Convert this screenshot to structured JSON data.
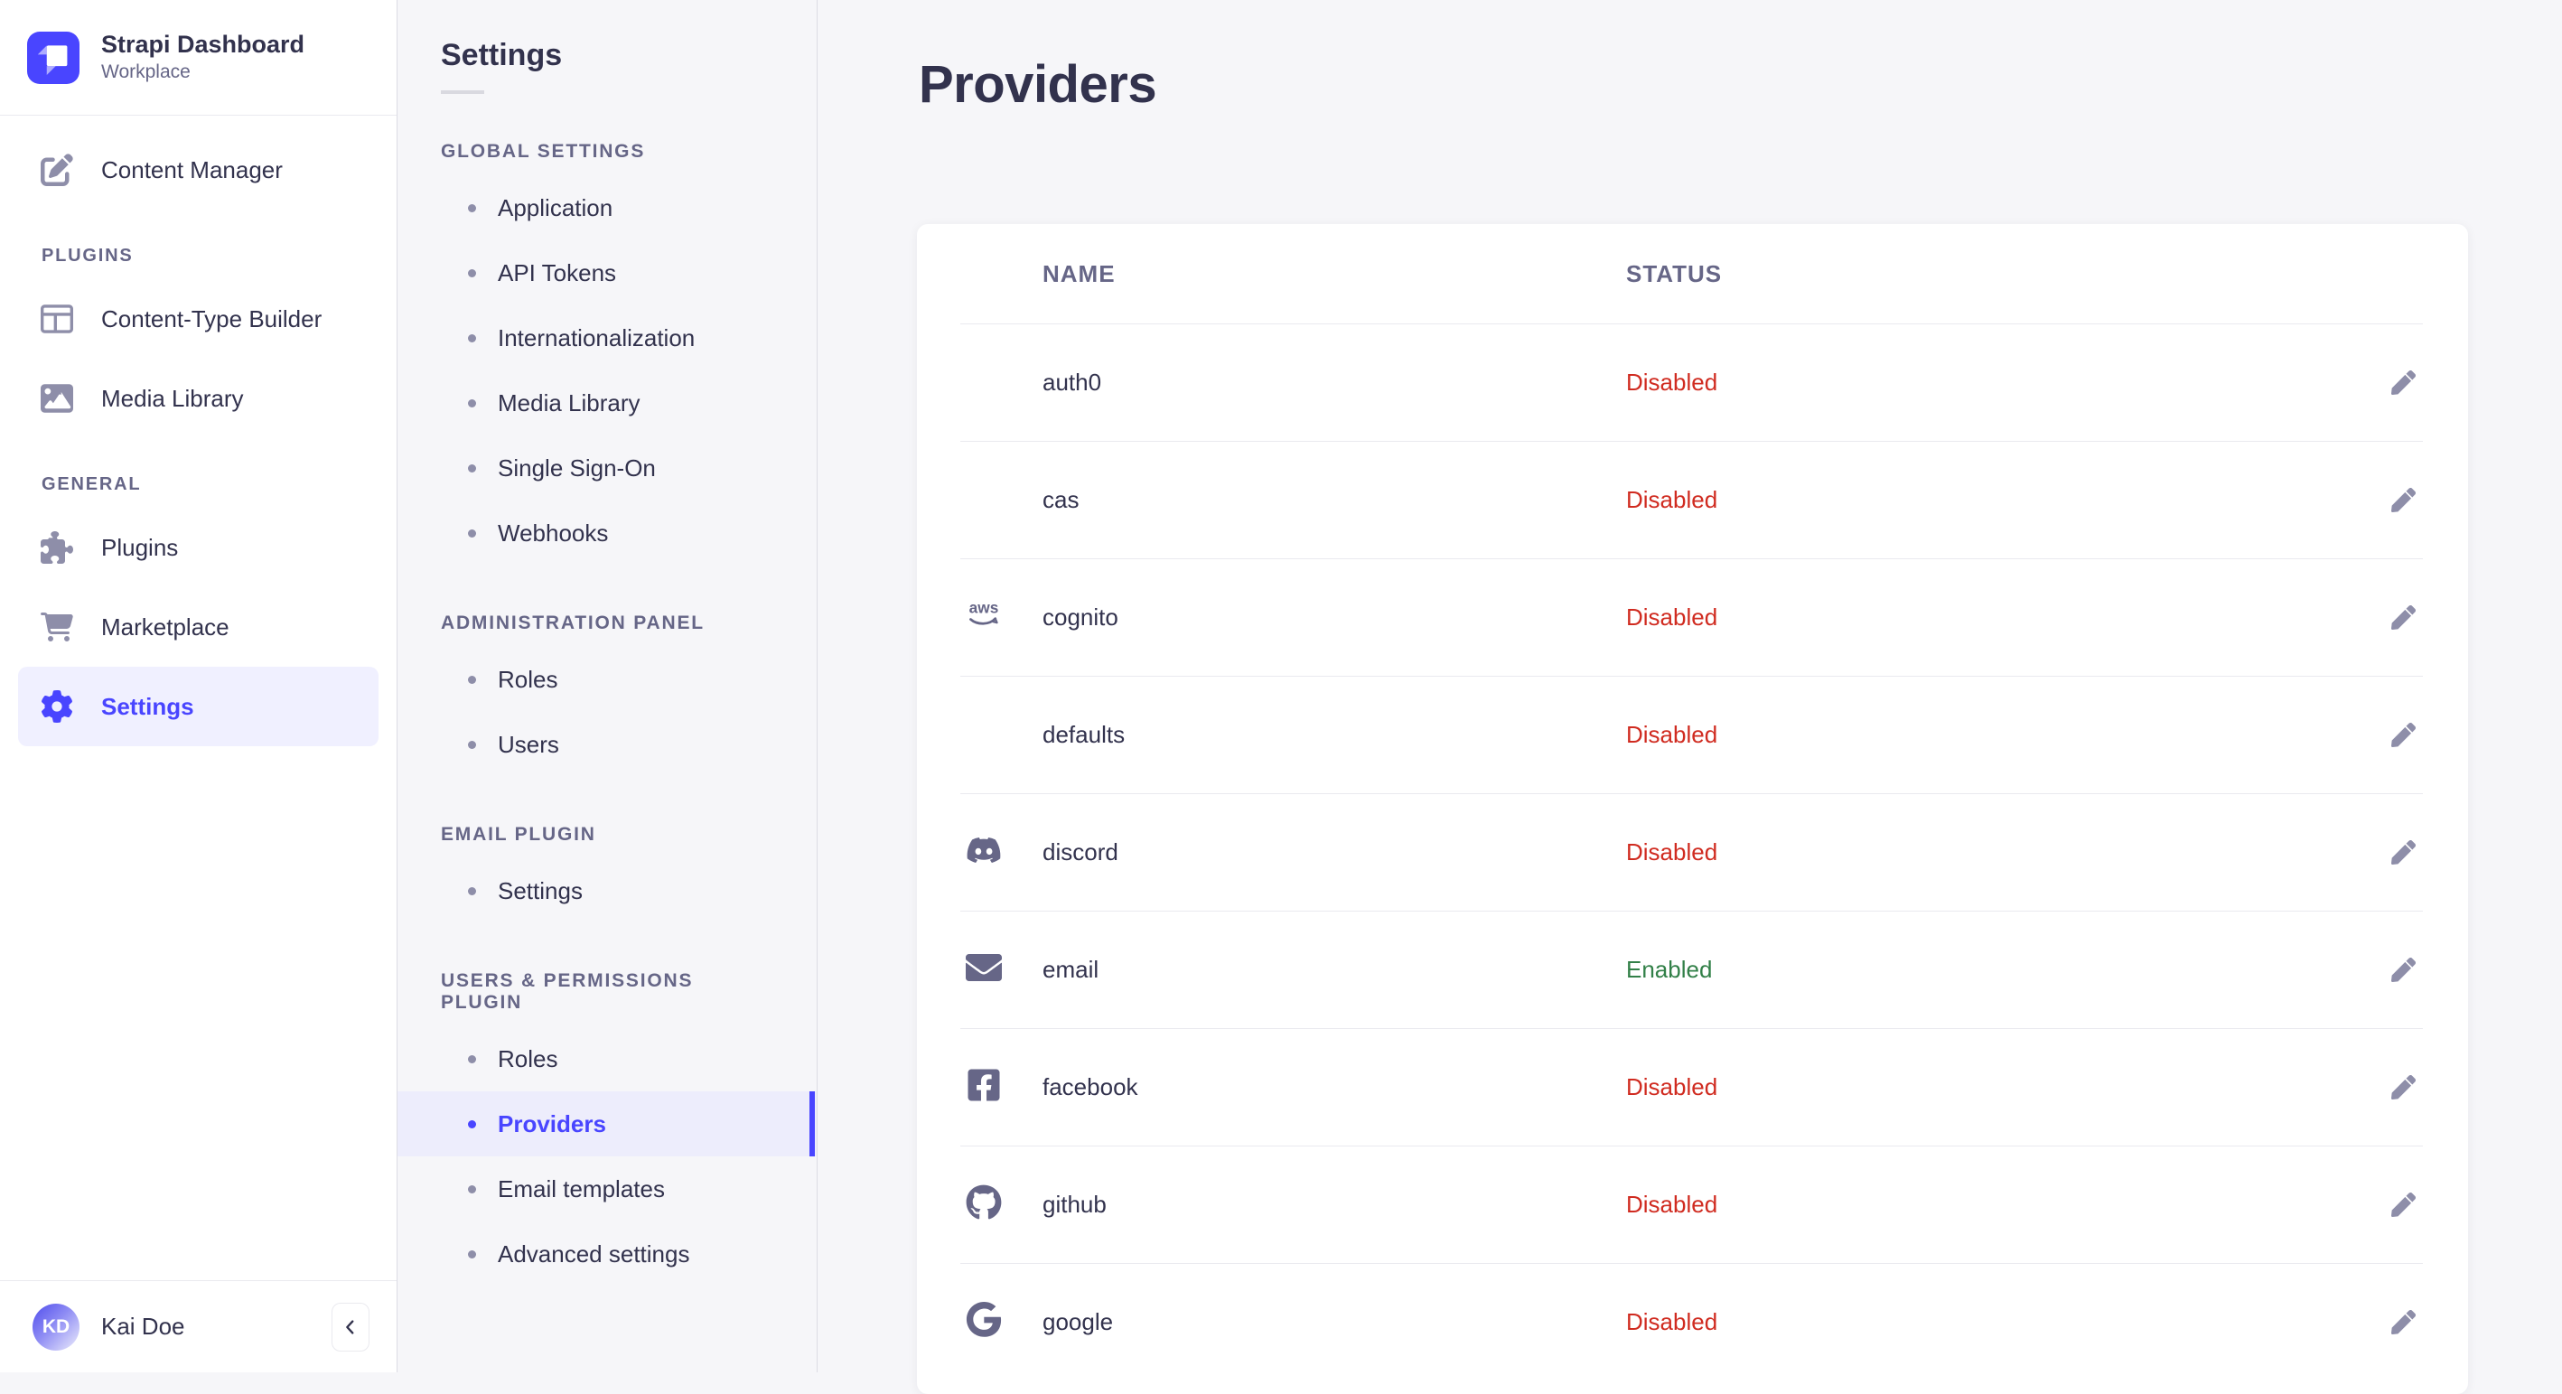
{
  "brand": {
    "name": "Strapi Dashboard",
    "workspace": "Workplace"
  },
  "main_nav": [
    {
      "type": "item",
      "label": "Content Manager",
      "icon": "content-manager"
    },
    {
      "type": "section",
      "label": "PLUGINS"
    },
    {
      "type": "item",
      "label": "Content-Type Builder",
      "icon": "content-type-builder"
    },
    {
      "type": "item",
      "label": "Media Library",
      "icon": "media-library"
    },
    {
      "type": "section",
      "label": "GENERAL"
    },
    {
      "type": "item",
      "label": "Plugins",
      "icon": "plugins"
    },
    {
      "type": "item",
      "label": "Marketplace",
      "icon": "marketplace"
    },
    {
      "type": "item",
      "label": "Settings",
      "icon": "settings",
      "active": true
    }
  ],
  "settings_nav": {
    "title": "Settings",
    "sections": [
      {
        "label": "GLOBAL SETTINGS",
        "items": [
          "Application",
          "API Tokens",
          "Internationalization",
          "Media Library",
          "Single Sign-On",
          "Webhooks"
        ]
      },
      {
        "label": "ADMINISTRATION PANEL",
        "items": [
          "Roles",
          "Users"
        ]
      },
      {
        "label": "EMAIL PLUGIN",
        "items": [
          "Settings"
        ]
      },
      {
        "label": "USERS & PERMISSIONS PLUGIN",
        "items": [
          "Roles",
          "Providers",
          "Email templates",
          "Advanced settings"
        ],
        "active": "Providers"
      }
    ]
  },
  "page": {
    "title": "Providers"
  },
  "table": {
    "columns": [
      "NAME",
      "STATUS"
    ],
    "rows": [
      {
        "name": "auth0",
        "icon": null,
        "status": "Disabled"
      },
      {
        "name": "cas",
        "icon": null,
        "status": "Disabled"
      },
      {
        "name": "cognito",
        "icon": "aws",
        "status": "Disabled"
      },
      {
        "name": "defaults",
        "icon": null,
        "status": "Disabled"
      },
      {
        "name": "discord",
        "icon": "discord",
        "status": "Disabled"
      },
      {
        "name": "email",
        "icon": "envelope",
        "status": "Enabled"
      },
      {
        "name": "facebook",
        "icon": "facebook",
        "status": "Disabled"
      },
      {
        "name": "github",
        "icon": "github",
        "status": "Disabled"
      },
      {
        "name": "google",
        "icon": "google",
        "status": "Disabled"
      }
    ]
  },
  "status_colors": {
    "Enabled": "#328048",
    "Disabled": "#d02b20"
  },
  "colors": {
    "primary": "#4945ff",
    "active_bg": "#ededfc",
    "border": "#eaeaef",
    "muted_text": "#666687",
    "icon": "#8e8ea9",
    "background": "#f6f6f9"
  },
  "user": {
    "initials": "KD",
    "name": "Kai Doe"
  },
  "help_button": {
    "label": "?"
  }
}
